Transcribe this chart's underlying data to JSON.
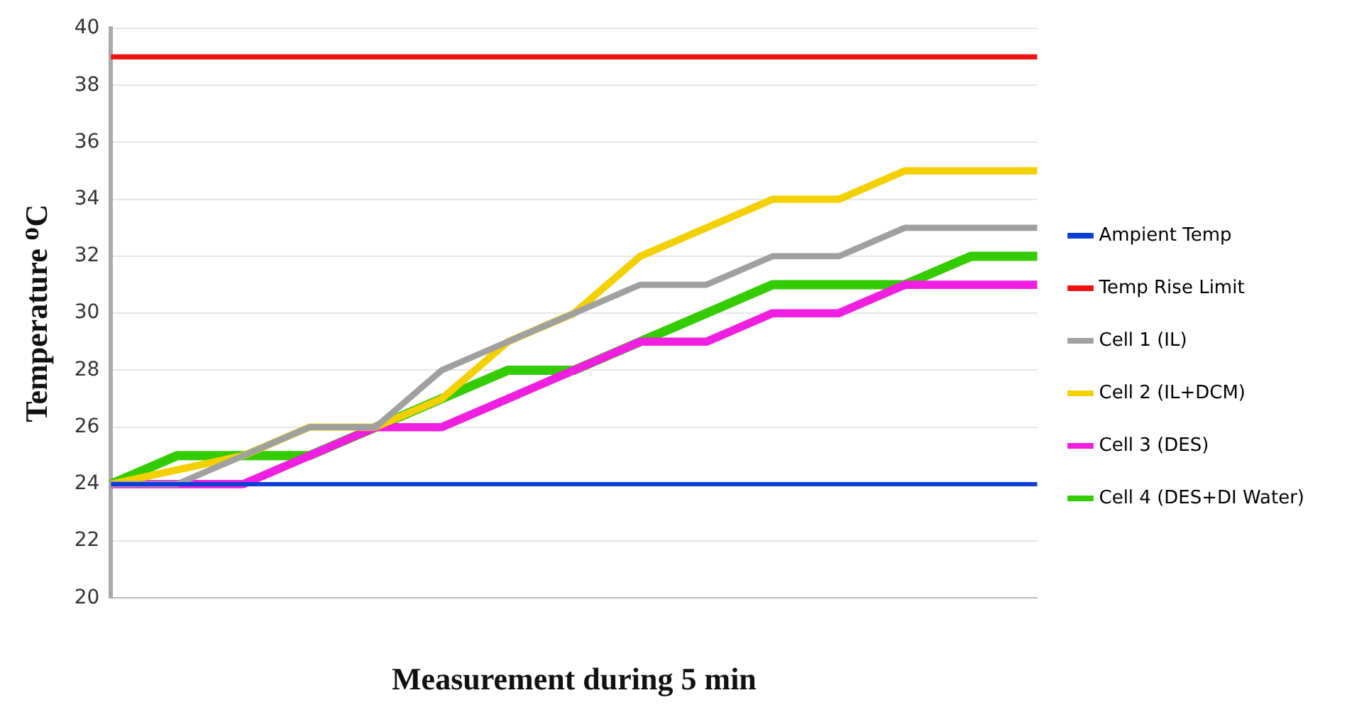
{
  "chart_data": {
    "type": "line",
    "xlabel": "Measurement during 5 min",
    "ylabel": "Temperature ᴼC",
    "categories": [
      null,
      null,
      null,
      null,
      null,
      null,
      null,
      null,
      null,
      null,
      null,
      null,
      null,
      null,
      null
    ],
    "ylim": [
      20,
      40
    ],
    "yticks": [
      20,
      22,
      24,
      26,
      28,
      30,
      32,
      34,
      36,
      38,
      40
    ],
    "grid": "y",
    "legend": "right",
    "marker": "none",
    "line_style": "solid",
    "series": [
      {
        "name": "Ampient Temp",
        "color": "#0b3fd6",
        "values": [
          24,
          24,
          24,
          24,
          24,
          24,
          24,
          24,
          24,
          24,
          24,
          24,
          24,
          24,
          24
        ]
      },
      {
        "name": "Temp Rise Limit",
        "color": "#ee1111",
        "values": [
          39,
          39,
          39,
          39,
          39,
          39,
          39,
          39,
          39,
          39,
          39,
          39,
          39,
          39,
          39
        ]
      },
      {
        "name": "Cell 1 (IL)",
        "color": "#a0a0a0",
        "values": [
          24,
          24,
          25,
          26,
          26,
          28,
          29,
          30,
          31,
          31,
          32,
          32,
          33,
          33,
          33
        ]
      },
      {
        "name": "Cell 2 (IL+DCM)",
        "color": "#f5d000",
        "values": [
          24,
          24.5,
          25,
          26,
          26,
          27,
          29,
          30,
          32,
          33,
          34,
          34,
          35,
          35,
          35
        ]
      },
      {
        "name": "Cell 3 (DES)",
        "color": "#f01ee0",
        "values": [
          24,
          24,
          24,
          25,
          26,
          26,
          27,
          28,
          29,
          29,
          30,
          30,
          31,
          31,
          31
        ]
      },
      {
        "name": "Cell 4 (DES+DI Water)",
        "color": "#33cc00",
        "values": [
          24,
          25,
          25,
          25,
          26,
          27,
          28,
          28,
          29,
          30,
          31,
          31,
          31,
          32,
          32
        ]
      }
    ]
  }
}
